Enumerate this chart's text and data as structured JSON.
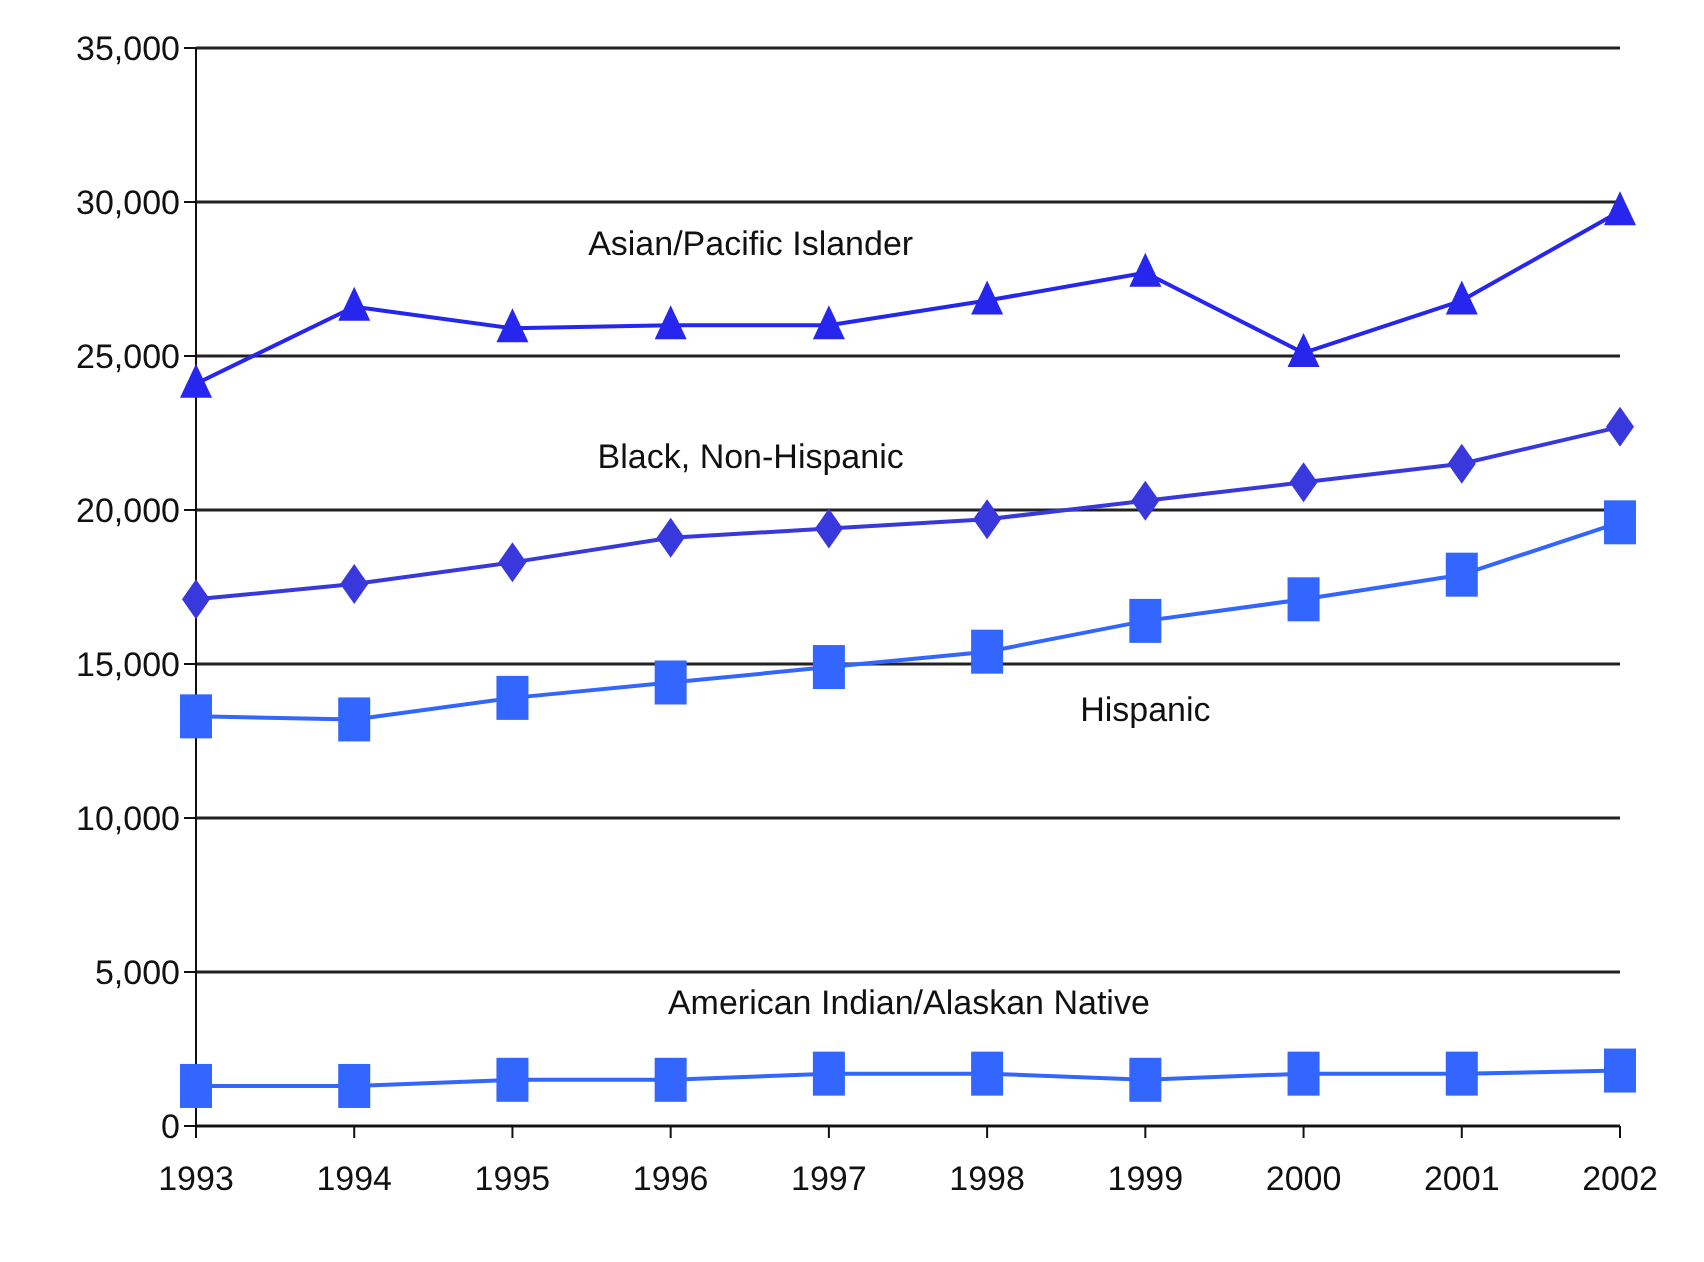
{
  "chart_data": {
    "type": "line",
    "categories": [
      "1993",
      "1994",
      "1995",
      "1996",
      "1997",
      "1998",
      "1999",
      "2000",
      "2001",
      "2002"
    ],
    "series": [
      {
        "name": "Asian/Pacific Islander",
        "color": "#2626ee",
        "marker": "triangle",
        "values": [
          24100,
          26600,
          25900,
          26000,
          26000,
          26800,
          27700,
          25100,
          26800,
          29700
        ]
      },
      {
        "name": "Black, Non-Hispanic",
        "color": "#3838dd",
        "marker": "diamond",
        "values": [
          17100,
          17600,
          18300,
          19100,
          19400,
          19700,
          20300,
          20900,
          21500,
          22700
        ]
      },
      {
        "name": "Hispanic",
        "color": "#3366ff",
        "marker": "square",
        "values": [
          13300,
          13200,
          13900,
          14400,
          14900,
          15400,
          16400,
          17100,
          17900,
          19600
        ]
      },
      {
        "name": "American Indian/Alaskan Native",
        "color": "#3366ff",
        "marker": "square",
        "values": [
          1300,
          1300,
          1500,
          1500,
          1700,
          1700,
          1500,
          1700,
          1700,
          1800
        ]
      }
    ],
    "ylim": [
      0,
      35000
    ],
    "yticks": [
      {
        "value": 0,
        "label": "0"
      },
      {
        "value": 5000,
        "label": "5,000"
      },
      {
        "value": 10000,
        "label": "10,000"
      },
      {
        "value": 15000,
        "label": "15,000"
      },
      {
        "value": 20000,
        "label": "20,000"
      },
      {
        "value": 25000,
        "label": "25,000"
      },
      {
        "value": 30000,
        "label": "30,000"
      },
      {
        "value": 35000,
        "label": "35,000"
      }
    ],
    "grid": "y",
    "line_style": "solid"
  }
}
